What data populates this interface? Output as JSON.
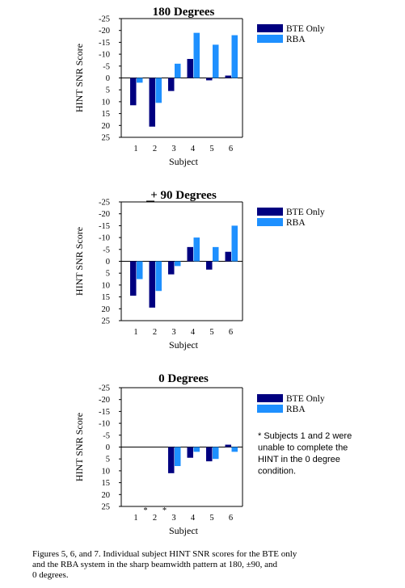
{
  "colors": {
    "bte": "#000080",
    "rba": "#1e90ff",
    "axis": "#000000"
  },
  "legend": {
    "bte_label": "BTE Only",
    "rba_label": "RBA"
  },
  "note": {
    "lines": [
      "* Subjects 1 and 2 were",
      "unable to complete the",
      "HINT in the 0 degree",
      "condition."
    ]
  },
  "caption": {
    "lines": [
      "Figures 5, 6, and 7.  Individual subject HINT SNR scores for the BTE only",
      "and the RBA system in the sharp beamwidth pattern at 180,  ±90, and",
      "0 degrees."
    ]
  },
  "chart_data": [
    {
      "type": "bar",
      "title": "180 Degrees",
      "xlabel": "Subject",
      "ylabel": "HINT SNR Score",
      "categories": [
        "1",
        "2",
        "3",
        "4",
        "5",
        "6"
      ],
      "yticks": [
        "-25",
        "-20",
        "-15",
        "-10",
        "-5",
        "0",
        "5",
        "10",
        "15",
        "20",
        "25"
      ],
      "ylim": [
        -25,
        25
      ],
      "y_inverted": true,
      "series": [
        {
          "name": "BTE Only",
          "values": [
            11.5,
            20.5,
            5.5,
            -8,
            1,
            -1
          ]
        },
        {
          "name": "RBA",
          "values": [
            2,
            10.5,
            -6,
            -19,
            -14,
            -18
          ]
        }
      ],
      "legend_position": "top-right",
      "grid": false
    },
    {
      "type": "bar",
      "title": "± 90 Degrees",
      "xlabel": "Subject",
      "ylabel": "HINT SNR Score",
      "categories": [
        "1",
        "2",
        "3",
        "4",
        "5",
        "6"
      ],
      "yticks": [
        "-25",
        "-20",
        "-15",
        "-10",
        "-5",
        "0",
        "5",
        "10",
        "15",
        "20",
        "25"
      ],
      "ylim": [
        -25,
        25
      ],
      "y_inverted": true,
      "series": [
        {
          "name": "BTE Only",
          "values": [
            14.5,
            19.5,
            5.5,
            -6,
            3.5,
            -4
          ]
        },
        {
          "name": "RBA",
          "values": [
            7.5,
            12.5,
            2,
            -10,
            -6,
            -15
          ]
        }
      ],
      "legend_position": "top-right",
      "grid": false
    },
    {
      "type": "bar",
      "title": "0 Degrees",
      "xlabel": "Subject",
      "ylabel": "HINT SNR Score",
      "categories": [
        "1",
        "2",
        "3",
        "4",
        "5",
        "6"
      ],
      "yticks": [
        "-25",
        "-20",
        "-15",
        "-10",
        "-5",
        "0",
        "5",
        "10",
        "15",
        "20",
        "25"
      ],
      "ylim": [
        -25,
        25
      ],
      "y_inverted": true,
      "series": [
        {
          "name": "BTE Only",
          "values": [
            null,
            null,
            11,
            4.5,
            6,
            -1
          ]
        },
        {
          "name": "RBA",
          "values": [
            null,
            null,
            8,
            2,
            5,
            2
          ]
        }
      ],
      "missing_markers": [
        "*",
        "*"
      ],
      "legend_position": "top-right",
      "grid": false
    }
  ]
}
